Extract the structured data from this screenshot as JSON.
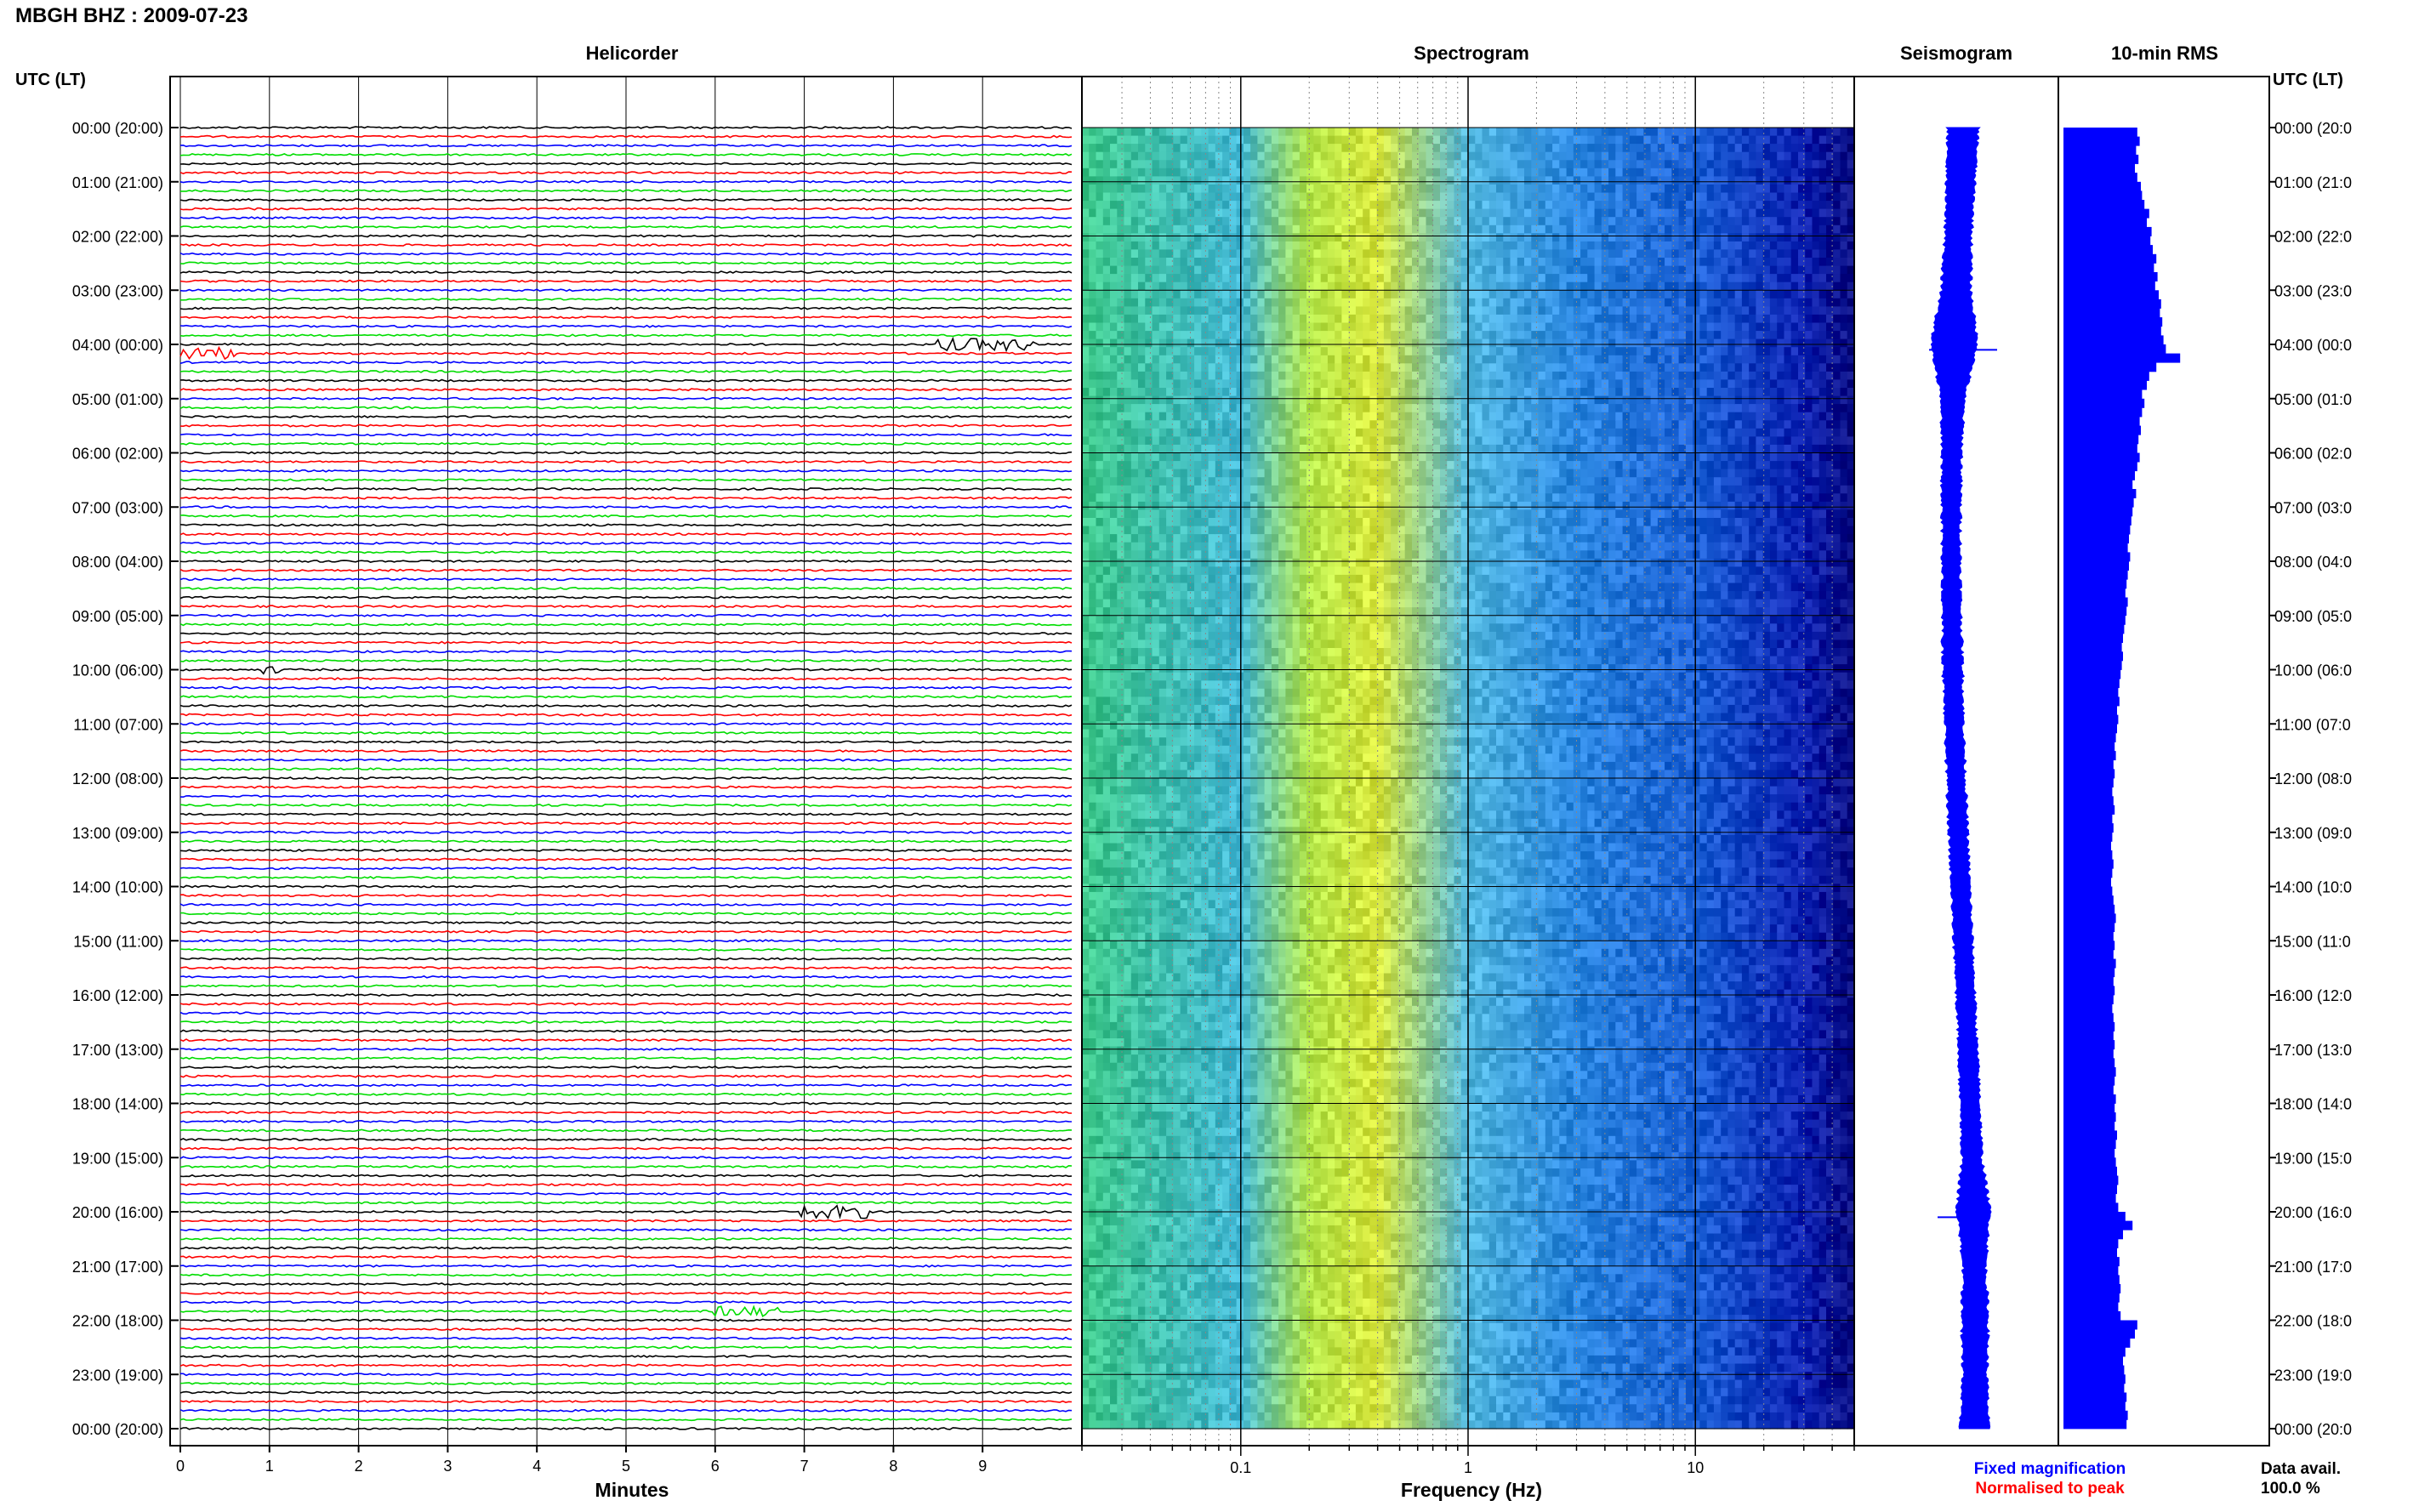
{
  "header": {
    "title": "MBGH BHZ : 2009-07-23"
  },
  "panels": {
    "helicorder": "Helicorder",
    "spectrogram": "Spectrogram",
    "seismogram": "Seismogram",
    "rms": "10-min RMS"
  },
  "axes": {
    "left_title": "UTC (LT)",
    "right_title": "UTC (LT)",
    "minutes_label": "Minutes",
    "freq_label": "Frequency (Hz)"
  },
  "time_labels": [
    "00:00 (20:00)",
    "01:00 (21:00)",
    "02:00 (22:00)",
    "03:00 (23:00)",
    "04:00 (00:00)",
    "05:00 (01:00)",
    "06:00 (02:00)",
    "07:00 (03:00)",
    "08:00 (04:00)",
    "09:00 (05:00)",
    "10:00 (06:00)",
    "11:00 (07:00)",
    "12:00 (08:00)",
    "13:00 (09:00)",
    "14:00 (10:00)",
    "15:00 (11:00)",
    "16:00 (12:00)",
    "17:00 (13:00)",
    "18:00 (14:00)",
    "19:00 (15:00)",
    "20:00 (16:00)",
    "21:00 (17:00)",
    "22:00 (18:00)",
    "23:00 (19:00)",
    "00:00 (20:00)"
  ],
  "right_time_labels": [
    "00:00 (20:0",
    "01:00 (21:0",
    "02:00 (22:0",
    "03:00 (23:0",
    "04:00 (00:0",
    "05:00 (01:0",
    "06:00 (02:0",
    "07:00 (03:0",
    "08:00 (04:0",
    "09:00 (05:0",
    "10:00 (06:0",
    "11:00 (07:0",
    "12:00 (08:0",
    "13:00 (09:0",
    "14:00 (10:0",
    "15:00 (11:0",
    "16:00 (12:0",
    "17:00 (13:0",
    "18:00 (14:0",
    "19:00 (15:0",
    "20:00 (16:0",
    "21:00 (17:0",
    "22:00 (18:0",
    "23:00 (19:0",
    "00:00 (20:0"
  ],
  "legend": {
    "fixed": "Fixed magnification",
    "fixed_color": "#0000ff",
    "normalised": "Normalised to peak",
    "normalised_color": "#ff0000"
  },
  "data_avail": {
    "label": "Data avail.",
    "value": "100.0 %"
  },
  "colors": {
    "trace_cycle": [
      "#000000",
      "#ff0000",
      "#0000ff",
      "#00dd00"
    ],
    "bar": "#0000ff"
  },
  "chart_data": [
    {
      "type": "line",
      "panel": "helicorder",
      "title": "Helicorder",
      "xlabel": "Minutes",
      "x_ticks": [
        0,
        1,
        2,
        3,
        4,
        5,
        6,
        7,
        8,
        9
      ],
      "xlim": [
        0,
        10
      ],
      "lines_per_hour": 6,
      "total_lines": 144,
      "grid": true,
      "events": [
        {
          "line": 24,
          "start_min": 8.5,
          "end_min": 9.6,
          "amp": 3.0
        },
        {
          "line": 25,
          "start_min": 0.0,
          "end_min": 0.6,
          "amp": 3.0
        },
        {
          "line": 60,
          "start_min": 0.9,
          "end_min": 1.1,
          "amp": 2.0
        },
        {
          "line": 120,
          "start_min": 6.9,
          "end_min": 7.7,
          "amp": 3.2
        },
        {
          "line": 131,
          "start_min": 6.0,
          "end_min": 6.7,
          "amp": 2.5
        }
      ]
    },
    {
      "type": "heatmap",
      "panel": "spectrogram",
      "title": "Spectrogram",
      "xlabel": "Frequency (Hz)",
      "x_scale": "log",
      "xlim": [
        0.02,
        50
      ],
      "x_tick_labels": [
        "0.1",
        "1",
        "10"
      ],
      "x_ticks": [
        0.1,
        1,
        10
      ],
      "color_by_frequency": [
        {
          "f": 0.02,
          "color": "#3ec98a"
        },
        {
          "f": 0.1,
          "color": "#43b8d6"
        },
        {
          "f": 0.2,
          "color": "#b4e64a"
        },
        {
          "f": 0.4,
          "color": "#d8e63c"
        },
        {
          "f": 1.0,
          "color": "#52b8e0"
        },
        {
          "f": 3.0,
          "color": "#2a86e0"
        },
        {
          "f": 10,
          "color": "#1a5fd6"
        },
        {
          "f": 30,
          "color": "#0a1fb0"
        },
        {
          "f": 50,
          "color": "#050a80"
        }
      ]
    },
    {
      "type": "area",
      "panel": "seismogram",
      "title": "Seismogram",
      "hours": [
        0,
        1,
        2,
        3,
        4,
        5,
        6,
        7,
        8,
        9,
        10,
        11,
        12,
        13,
        14,
        15,
        16,
        17,
        18,
        19,
        20,
        21,
        22,
        23,
        24
      ],
      "amplitude": [
        1.0,
        0.9,
        0.85,
        0.95,
        1.6,
        0.7,
        0.6,
        0.55,
        0.55,
        0.55,
        0.6,
        0.55,
        0.55,
        0.55,
        0.55,
        0.55,
        0.55,
        0.55,
        0.6,
        0.6,
        1.1,
        0.7,
        0.85,
        0.75,
        0.9
      ]
    },
    {
      "type": "bar",
      "panel": "rms",
      "title": "10-min RMS",
      "orientation": "horizontal",
      "bars_per_hour": 6,
      "values": [
        0.62,
        0.64,
        0.61,
        0.63,
        0.6,
        0.62,
        0.65,
        0.66,
        0.68,
        0.72,
        0.7,
        0.74,
        0.73,
        0.75,
        0.78,
        0.76,
        0.79,
        0.77,
        0.8,
        0.82,
        0.81,
        0.83,
        0.82,
        0.84,
        0.86,
        0.98,
        0.78,
        0.72,
        0.7,
        0.66,
        0.68,
        0.66,
        0.64,
        0.65,
        0.63,
        0.62,
        0.64,
        0.62,
        0.6,
        0.58,
        0.61,
        0.59,
        0.58,
        0.57,
        0.56,
        0.55,
        0.54,
        0.56,
        0.55,
        0.54,
        0.53,
        0.52,
        0.54,
        0.53,
        0.52,
        0.51,
        0.5,
        0.49,
        0.5,
        0.49,
        0.48,
        0.47,
        0.46,
        0.47,
        0.45,
        0.46,
        0.45,
        0.44,
        0.43,
        0.44,
        0.42,
        0.43,
        0.42,
        0.41,
        0.42,
        0.43,
        0.41,
        0.42,
        0.41,
        0.4,
        0.41,
        0.42,
        0.41,
        0.4,
        0.41,
        0.42,
        0.43,
        0.44,
        0.43,
        0.42,
        0.43,
        0.42,
        0.44,
        0.43,
        0.42,
        0.43,
        0.42,
        0.41,
        0.42,
        0.43,
        0.42,
        0.43,
        0.42,
        0.43,
        0.44,
        0.43,
        0.42,
        0.44,
        0.43,
        0.44,
        0.43,
        0.45,
        0.44,
        0.43,
        0.44,
        0.45,
        0.46,
        0.45,
        0.44,
        0.46,
        0.52,
        0.58,
        0.5,
        0.46,
        0.45,
        0.47,
        0.46,
        0.47,
        0.48,
        0.47,
        0.46,
        0.48,
        0.62,
        0.6,
        0.56,
        0.52,
        0.5,
        0.51,
        0.52,
        0.51,
        0.53,
        0.52,
        0.54,
        0.53
      ]
    }
  ]
}
